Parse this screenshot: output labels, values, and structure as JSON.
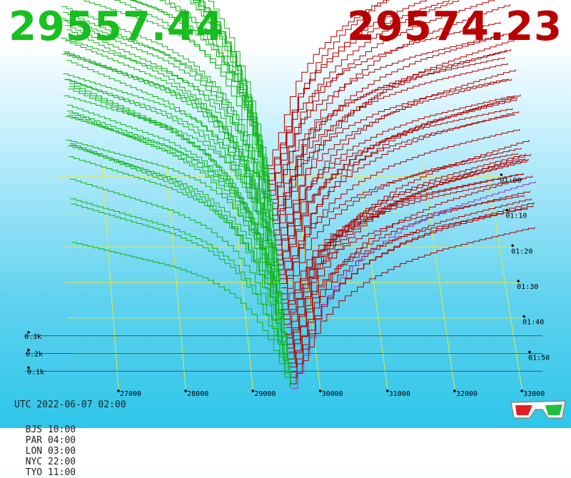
{
  "prices": {
    "bid": "29557.44",
    "ask": "29574.23",
    "bid_color": "#18c020",
    "ask_color": "#b80000"
  },
  "time": {
    "utc": "UTC 2022-06-07 02:00",
    "zones": [
      "BJS 10:00",
      "PAR 04:00",
      "LON 03:00",
      "NYC 22:00",
      "TYO 11:00"
    ]
  },
  "icons": {
    "glasses": "3d-glasses-icon"
  },
  "chart_data": {
    "type": "area",
    "style": "3d-order-book-depth-history",
    "x_ticks": [
      "27000",
      "28000",
      "29000",
      "30000",
      "31000",
      "32000",
      "33000"
    ],
    "x_range": [
      26300,
      33200
    ],
    "depth_ticks": [
      "0.1k",
      "0.2k",
      "0.3k"
    ],
    "depth_values": [
      100,
      200,
      300
    ],
    "time_ticks": [
      "01:00",
      "01:10",
      "01:20",
      "01:30",
      "01:40",
      "01:50"
    ],
    "bid_price": 29557.44,
    "ask_price": 29574.23,
    "bid_color": "#12b418",
    "ask_color": "#b40000",
    "latest_ask_color": "#9b30d0",
    "grid": true,
    "grid_color": "#e8e83a",
    "series": [
      {
        "name": "bids",
        "side": "bid",
        "price": [
          26300,
          26800,
          27300,
          27800,
          28300,
          28700,
          29000,
          29200,
          29350,
          29450,
          29557
        ],
        "cum_depth": [
          360,
          340,
          320,
          300,
          270,
          230,
          180,
          130,
          80,
          35,
          0
        ]
      },
      {
        "name": "asks",
        "side": "ask",
        "price": [
          29574,
          29700,
          29850,
          30000,
          30300,
          30700,
          31200,
          31800,
          32400,
          33000,
          33200
        ],
        "cum_depth": [
          0,
          30,
          70,
          110,
          150,
          185,
          215,
          240,
          258,
          275,
          280
        ]
      }
    ]
  }
}
